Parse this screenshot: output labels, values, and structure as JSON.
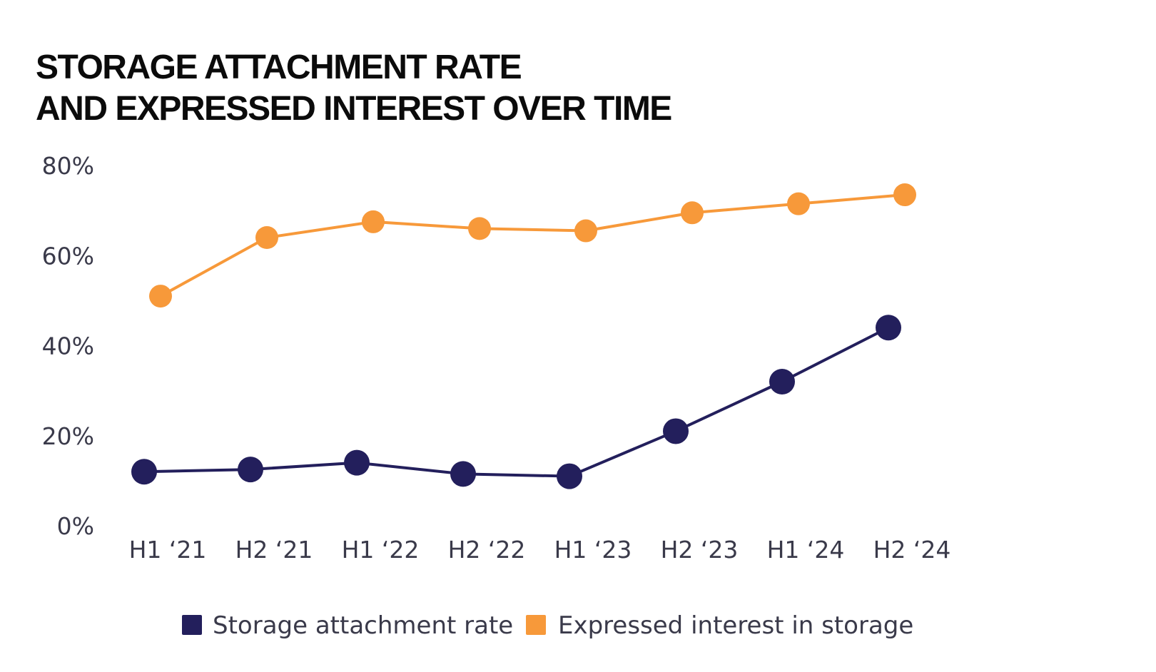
{
  "chart_data": {
    "type": "line",
    "title_lines": [
      "STORAGE ATTACHMENT RATE",
      "AND EXPRESSED INTEREST OVER TIME"
    ],
    "xlabel": "",
    "ylabel": "",
    "categories": [
      "H1 ‘21",
      "H2 ‘21",
      "H1 ‘22",
      "H2 ‘22",
      "H1 ‘23",
      "H2 ‘23",
      "H1 ‘24",
      "H2 ‘24"
    ],
    "y_ticks": [
      {
        "value": 0,
        "label": "0%"
      },
      {
        "value": 20,
        "label": "20%"
      },
      {
        "value": 40,
        "label": "40%"
      },
      {
        "value": 60,
        "label": "60%"
      },
      {
        "value": 80,
        "label": "80%"
      }
    ],
    "ylim": [
      0,
      80
    ],
    "grid": false,
    "legend_position": "bottom-center",
    "series": [
      {
        "name": "Storage attachment rate",
        "color": "#231f5c",
        "values": [
          12,
          12.5,
          14,
          11.5,
          11,
          21,
          32,
          44
        ]
      },
      {
        "name": "Expressed interest in storage",
        "color": "#f7993a",
        "values": [
          51,
          64,
          67.5,
          66,
          65.5,
          69.5,
          71.5,
          73.5
        ]
      }
    ]
  }
}
